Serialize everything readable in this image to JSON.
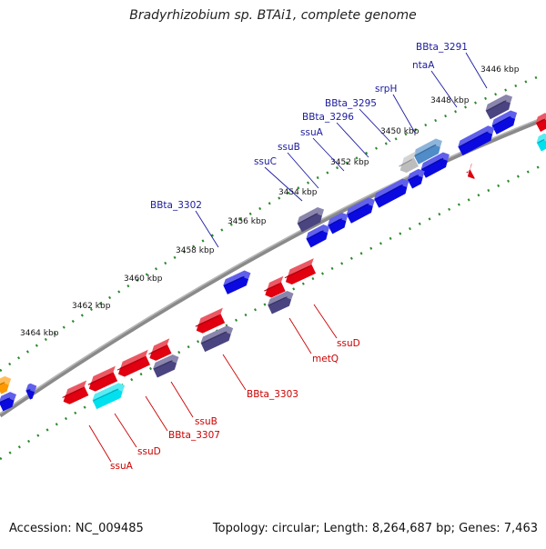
{
  "title": "Bradyrhizobium sp. BTAi1, complete genome",
  "footer": {
    "accession": "Accession: NC_009485",
    "stats": "Topology: circular; Length: 8,264,687 bp; Genes: 7,463"
  },
  "colors": {
    "forward_label": "#1a1aa0",
    "reverse_label": "#cc0000",
    "blue_gene": "#0a0ae0",
    "red_gene": "#e00010",
    "purple_gene": "#4a4480",
    "cyan_gene": "#00e0ee",
    "steelblue_gene": "#4f8cc8",
    "gray_gene": "#bdbdbd",
    "orange_gene": "#ff9900",
    "backbone": "#8a8a8a",
    "dots": "#2a8a2a"
  },
  "ticks": [
    "3446 kbp",
    "3448 kbp",
    "3450 kbp",
    "3452 kbp",
    "3454 kbp",
    "3456 kbp",
    "3458 kbp",
    "3460 kbp",
    "3462 kbp",
    "3464 kbp"
  ],
  "forward_labels": [
    "BBta_3291",
    "ntaA",
    "srpH",
    "BBta_3295",
    "BBta_3296",
    "ssuA",
    "ssuB",
    "ssuC",
    "BBta_3302"
  ],
  "reverse_labels": [
    "ssuD",
    "metQ",
    "BBta_3303",
    "ssuB",
    "BBta_3307",
    "ssuD",
    "ssuA"
  ]
}
